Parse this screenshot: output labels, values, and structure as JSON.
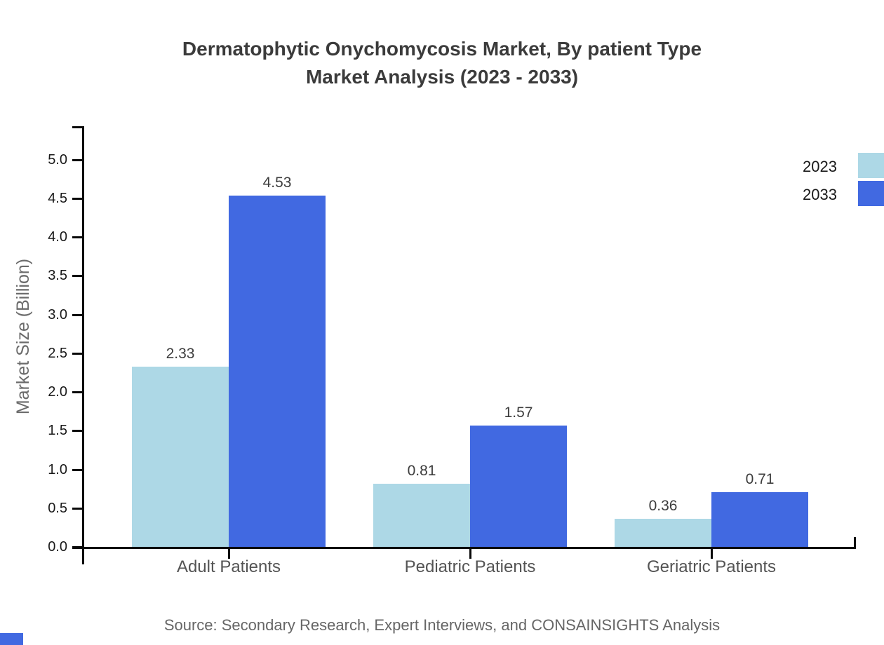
{
  "title": {
    "line1": "Dermatophytic Onychomycosis Market, By patient Type",
    "line2": "Market Analysis (2023 - 2033)"
  },
  "source": "Source: Secondary Research, Expert Interviews, and CONSAINSIGHTS Analysis",
  "watermark": {
    "color": "#4169E1"
  },
  "chart_data": {
    "type": "bar",
    "title": "Dermatophytic Onychomycosis Market, By patient Type Market Analysis (2023 - 2033)",
    "categories": [
      "Adult Patients",
      "Pediatric Patients",
      "Geriatric Patients"
    ],
    "series": [
      {
        "name": "2023",
        "color": "#ADD8E6",
        "values": [
          2.33,
          0.81,
          0.36
        ]
      },
      {
        "name": "2033",
        "color": "#4169E1",
        "values": [
          4.53,
          1.57,
          0.71
        ]
      }
    ],
    "xlabel": "",
    "ylabel": "Market Size (Billion)",
    "ylim": [
      0,
      5.5
    ],
    "yticks": [
      0,
      0.5,
      1,
      1.5,
      2,
      2.5,
      3,
      3.5,
      4,
      4.5,
      5
    ],
    "ytick_format": "one-decimal",
    "value_label_format": "two-decimal",
    "grid": false,
    "legend_position": "top-right",
    "value_labels": true
  }
}
